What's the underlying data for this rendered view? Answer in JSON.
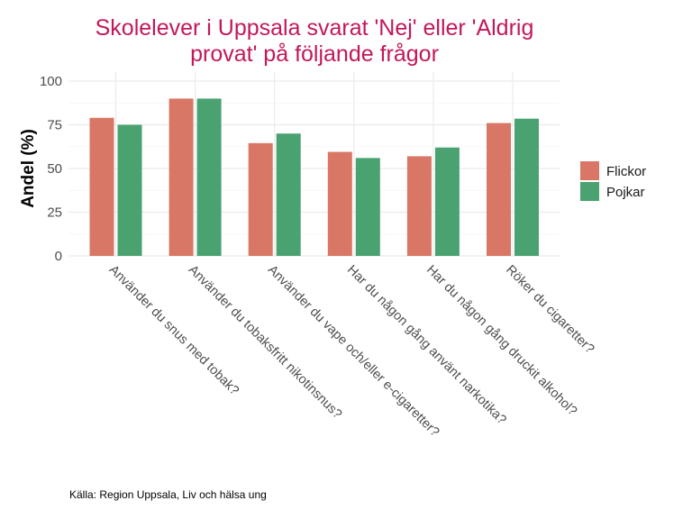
{
  "chart_data": {
    "type": "bar",
    "title_lines": [
      "Skolelever i Uppsala svarat 'Nej' eller 'Aldrig",
      "provat' på följande frågor"
    ],
    "xlabel": "",
    "ylabel": "Andel (%)",
    "ylim": [
      0,
      100
    ],
    "yticks": [
      0,
      25,
      50,
      75,
      100
    ],
    "ytick_labels": [
      "0",
      "25",
      "50",
      "75",
      "100"
    ],
    "grid": true,
    "categories": [
      "Använder du snus med tobak?",
      "Använder du tobaksfritt nikotinsnus?",
      "Använder du vape och/eller e-cigaretter?",
      "Har du någon gång använt narkotika?",
      "Har du någon gång druckit alkohol?",
      "Röker du cigaretter?"
    ],
    "series": [
      {
        "name": "Flickor",
        "color": "#d87765",
        "values": [
          79,
          90,
          64.5,
          59.5,
          57,
          76
        ]
      },
      {
        "name": "Pojkar",
        "color": "#4aa271",
        "values": [
          75,
          90,
          70,
          56,
          62,
          78.5
        ]
      }
    ],
    "legend": {
      "position": "right",
      "entries": [
        "Flickor",
        "Pojkar"
      ]
    },
    "caption": "Källa: Region Uppsala, Liv och hälsa ung"
  },
  "colors": {
    "title": "#c2185b"
  }
}
